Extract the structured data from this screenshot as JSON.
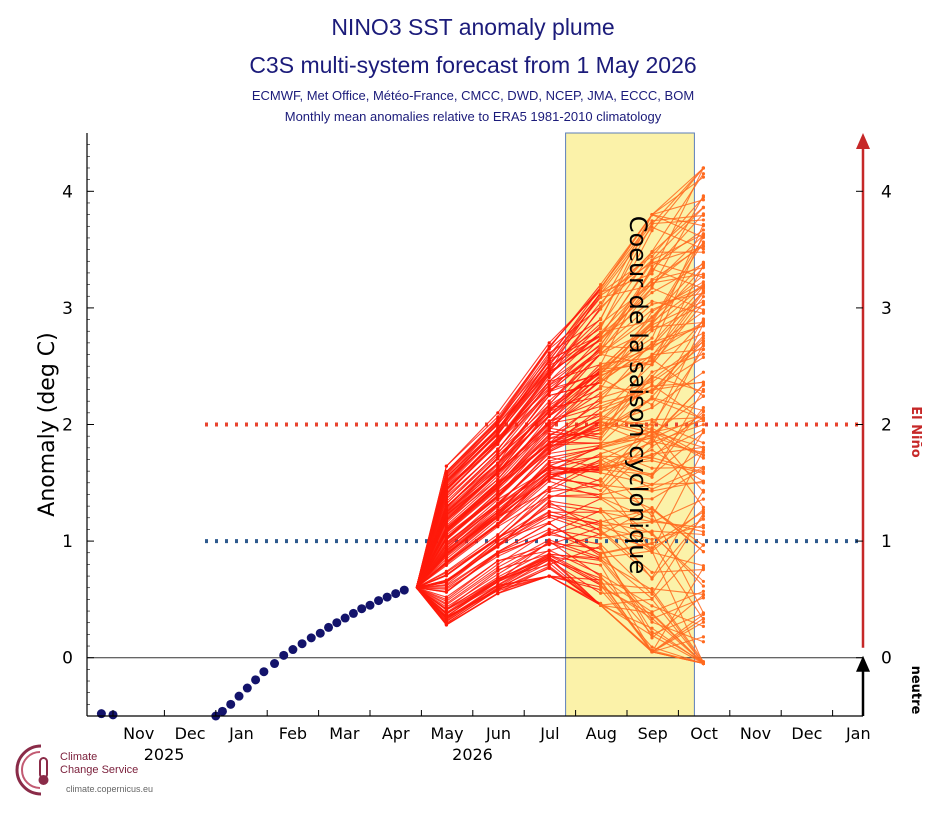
{
  "header": {
    "title": "NINO3 SST anomaly plume",
    "subtitle": "C3S multi-system forecast from 1 May 2026",
    "systems": "ECMWF, Met Office, Météo-France, CMCC, DWD, NCEP, JMA, ECCC, BOM",
    "climatology_note": "Monthly mean anomalies relative to ERA5 1981-2010 climatology"
  },
  "logo": {
    "line1": "Climate",
    "line2": "Change Service",
    "url": "climate.copernicus.eu"
  },
  "chart_data": {
    "type": "line",
    "title": "NINO3 SST anomaly plume",
    "ylabel": "Anomaly (deg C)",
    "ylim": [
      -0.5,
      4.5
    ],
    "yticks": [
      0,
      1,
      2,
      3,
      4
    ],
    "x_tick_labels": [
      "Nov",
      "Dec",
      "Jan",
      "Feb",
      "Mar",
      "Apr",
      "May",
      "Jun",
      "Jul",
      "Aug",
      "Sep",
      "Oct",
      "Nov",
      "Dec",
      "Jan"
    ],
    "year_labels": [
      {
        "text": "2025",
        "under": "Dec"
      },
      {
        "text": "2026",
        "under": "Jun"
      }
    ],
    "highlight_band": {
      "from": "Aug",
      "to": "Oct",
      "label": "Coeur de la saison cyclonique",
      "color": "#fbf2a9"
    },
    "thresholds": [
      {
        "value": 2,
        "color": "#e8442f",
        "style": "dotted"
      },
      {
        "value": 1,
        "color": "#2f5b8f",
        "style": "dotted"
      }
    ],
    "right_axis": {
      "ticks": [
        0,
        1,
        2,
        3,
        4
      ],
      "el_nino_label": "El Niño",
      "neutral_label": "neutre",
      "el_nino_color": "#c62828",
      "neutral_color": "#000000"
    },
    "observations": {
      "color": "#13136b",
      "points": [
        {
          "x": "2025-10-25",
          "y": -0.48
        },
        {
          "x": "2025-11-01",
          "y": -0.49
        },
        {
          "x": "2026-01-01",
          "y": -0.5
        },
        {
          "x": "2026-01-05",
          "y": -0.46
        },
        {
          "x": "2026-01-10",
          "y": -0.4
        },
        {
          "x": "2026-01-15",
          "y": -0.33
        },
        {
          "x": "2026-01-20",
          "y": -0.26
        },
        {
          "x": "2026-01-25",
          "y": -0.19
        },
        {
          "x": "2026-01-30",
          "y": -0.12
        },
        {
          "x": "2026-02-05",
          "y": -0.05
        },
        {
          "x": "2026-02-10",
          "y": 0.02
        },
        {
          "x": "2026-02-15",
          "y": 0.07
        },
        {
          "x": "2026-02-20",
          "y": 0.12
        },
        {
          "x": "2026-02-25",
          "y": 0.17
        },
        {
          "x": "2026-03-02",
          "y": 0.21
        },
        {
          "x": "2026-03-07",
          "y": 0.26
        },
        {
          "x": "2026-03-12",
          "y": 0.3
        },
        {
          "x": "2026-03-17",
          "y": 0.34
        },
        {
          "x": "2026-03-22",
          "y": 0.38
        },
        {
          "x": "2026-03-27",
          "y": 0.42
        },
        {
          "x": "2026-04-01",
          "y": 0.45
        },
        {
          "x": "2026-04-06",
          "y": 0.49
        },
        {
          "x": "2026-04-11",
          "y": 0.52
        },
        {
          "x": "2026-04-16",
          "y": 0.55
        },
        {
          "x": "2026-04-21",
          "y": 0.58
        }
      ]
    },
    "forecast": {
      "color": "#ff1a0a",
      "color_in_band": "#ff6a1f",
      "months": [
        "May",
        "Jun",
        "Jul",
        "Aug",
        "Sep",
        "Oct"
      ],
      "start_value": 0.6,
      "envelope_min": [
        0.28,
        0.55,
        0.7,
        0.45,
        0.05,
        -0.05
      ],
      "envelope_max": [
        1.65,
        2.1,
        2.7,
        3.2,
        3.8,
        4.2
      ],
      "member_count": 160
    }
  }
}
